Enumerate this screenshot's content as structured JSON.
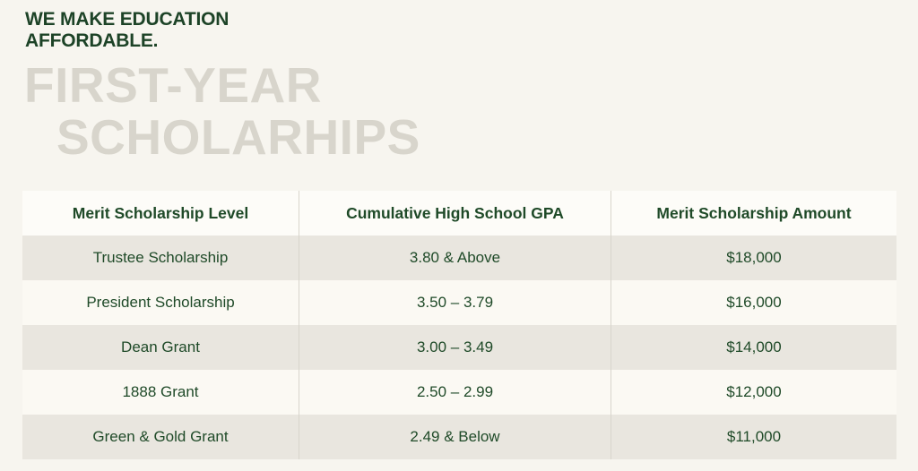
{
  "header": {
    "eyebrow_line1": "WE MAKE EDUCATION",
    "eyebrow_line2": "AFFORDABLE.",
    "title_line1": "FIRST-YEAR",
    "title_line2": "SCHOLARHIPS"
  },
  "table": {
    "columns": [
      "Merit Scholarship Level",
      "Cumulative High School GPA",
      "Merit Scholarship Amount"
    ],
    "rows": [
      {
        "level": "Trustee Scholarship",
        "gpa": "3.80 & Above",
        "amount": "$18,000"
      },
      {
        "level": "President Scholarship",
        "gpa": "3.50 – 3.79",
        "amount": "$16,000"
      },
      {
        "level": "Dean Grant",
        "gpa": "3.00 – 3.49",
        "amount": "$14,000"
      },
      {
        "level": "1888 Grant",
        "gpa": "2.50 – 2.99",
        "amount": "$12,000"
      },
      {
        "level": "Green & Gold Grant",
        "gpa": "2.49 & Below",
        "amount": "$11,000"
      }
    ]
  },
  "colors": {
    "page_background": "#f7f5ef",
    "dark_green_text": "#1f4a28",
    "eyebrow_green": "#1d4327",
    "title_gray": "#d8d5cc",
    "row_stripe": "#e9e6df",
    "row_light": "#fbf9f3",
    "header_row_background": "#fdfcf8",
    "column_divider": "#d8d5cc"
  }
}
